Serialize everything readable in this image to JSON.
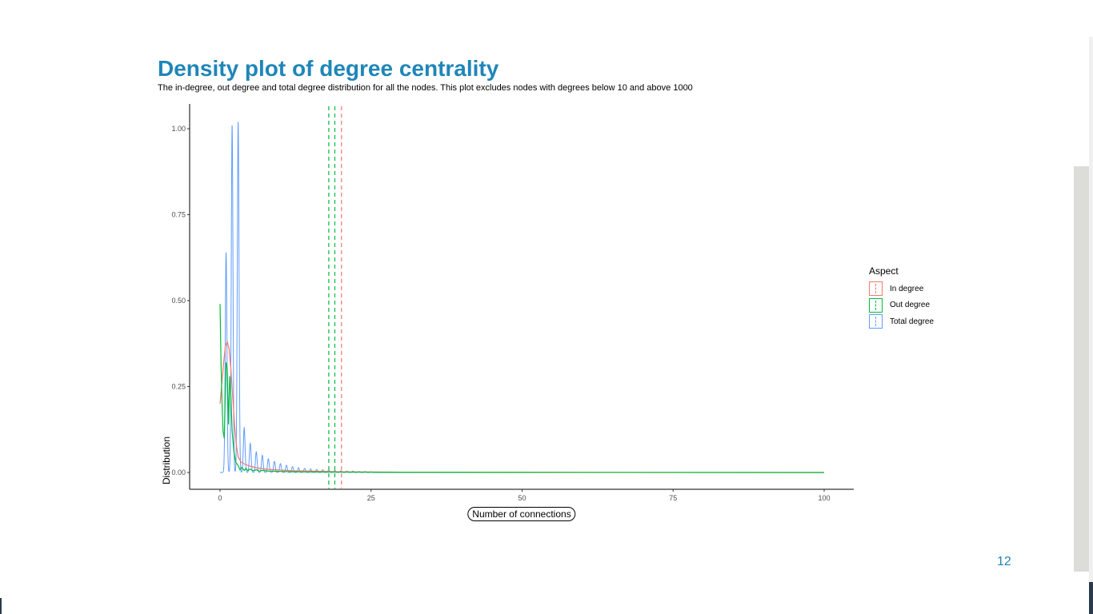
{
  "slide": {
    "title": "Density plot of degree centrality",
    "subtitle": "The in-degree, out degree and total degree distribution for all the nodes. This plot excludes nodes with degrees below 10 and above 1000",
    "page_number": "12",
    "title_color": "#1f86b8"
  },
  "chart_data": {
    "type": "line",
    "title": "Density plot of degree centrality",
    "subtitle": "The in-degree, out degree and total degree distribution for all the nodes. This plot excludes nodes with degrees below 10 and above 1000",
    "xlabel": "Number of connections",
    "ylabel": "Distribution",
    "xlim": [
      0,
      100
    ],
    "ylim": [
      0,
      1.0
    ],
    "xticks": [
      "0",
      "25",
      "50",
      "75",
      "100"
    ],
    "yticks": [
      "0.00",
      "0.25",
      "0.50",
      "0.75",
      "1.00"
    ],
    "grid": false,
    "legend": {
      "title": "Aspect",
      "position": "right",
      "entries": [
        "In degree",
        "Out degree",
        "Total degree"
      ]
    },
    "series": [
      {
        "name": "In degree",
        "color": "#f8766d",
        "x": [
          0,
          0.3,
          0.6,
          0.9,
          1.2,
          1.5,
          1.8,
          2.1,
          2.4,
          2.7,
          3.0,
          3.5,
          4,
          5,
          6,
          7,
          8,
          10,
          12,
          15,
          20,
          30,
          50,
          100
        ],
        "y": [
          0.2,
          0.26,
          0.32,
          0.37,
          0.38,
          0.36,
          0.3,
          0.22,
          0.14,
          0.08,
          0.045,
          0.03,
          0.025,
          0.018,
          0.014,
          0.011,
          0.009,
          0.007,
          0.005,
          0.004,
          0.002,
          0.001,
          0.0005,
          0
        ]
      },
      {
        "name": "Out degree",
        "color": "#00ba38",
        "x": [
          0,
          0.15,
          0.3,
          0.5,
          0.7,
          1.0,
          1.2,
          1.4,
          1.6,
          1.8,
          2.0,
          2.3,
          2.6,
          3.0,
          3.3,
          3.6,
          4.0,
          4.3,
          4.6,
          5.0,
          5.5,
          6.0,
          6.5,
          7.0,
          8,
          10,
          12,
          15,
          20,
          30,
          50,
          100
        ],
        "y": [
          0.49,
          0.33,
          0.22,
          0.12,
          0.1,
          0.32,
          0.3,
          0.14,
          0.28,
          0.22,
          0.12,
          0.06,
          0.03,
          0.02,
          0.008,
          0.015,
          0.006,
          0.012,
          0.005,
          0.01,
          0.005,
          0.008,
          0.004,
          0.006,
          0.004,
          0.003,
          0.002,
          0.0015,
          0.001,
          0.0005,
          0.0002,
          0
        ]
      },
      {
        "name": "Total degree",
        "color": "#619cff",
        "peaks_x": [
          1,
          2,
          3,
          4,
          5,
          6,
          7,
          8,
          9,
          10,
          11,
          12,
          13,
          14,
          15,
          16,
          17,
          18,
          19,
          20,
          21,
          22,
          23,
          24,
          25
        ],
        "peaks_y": [
          0.64,
          1.01,
          1.02,
          0.13,
          0.085,
          0.06,
          0.05,
          0.04,
          0.032,
          0.026,
          0.021,
          0.017,
          0.014,
          0.012,
          0.01,
          0.009,
          0.008,
          0.007,
          0.006,
          0.005,
          0.004,
          0.004,
          0.003,
          0.003,
          0.002
        ],
        "x_range": [
          0,
          100
        ]
      }
    ],
    "mean_lines": [
      {
        "series": "In degree",
        "x": 20.1,
        "color": "#f8766d"
      },
      {
        "series": "Out degree",
        "x": 18.0,
        "color": "#00ba38"
      },
      {
        "series": "Total degree",
        "x": 19.0,
        "color": "#00ba38"
      }
    ]
  }
}
